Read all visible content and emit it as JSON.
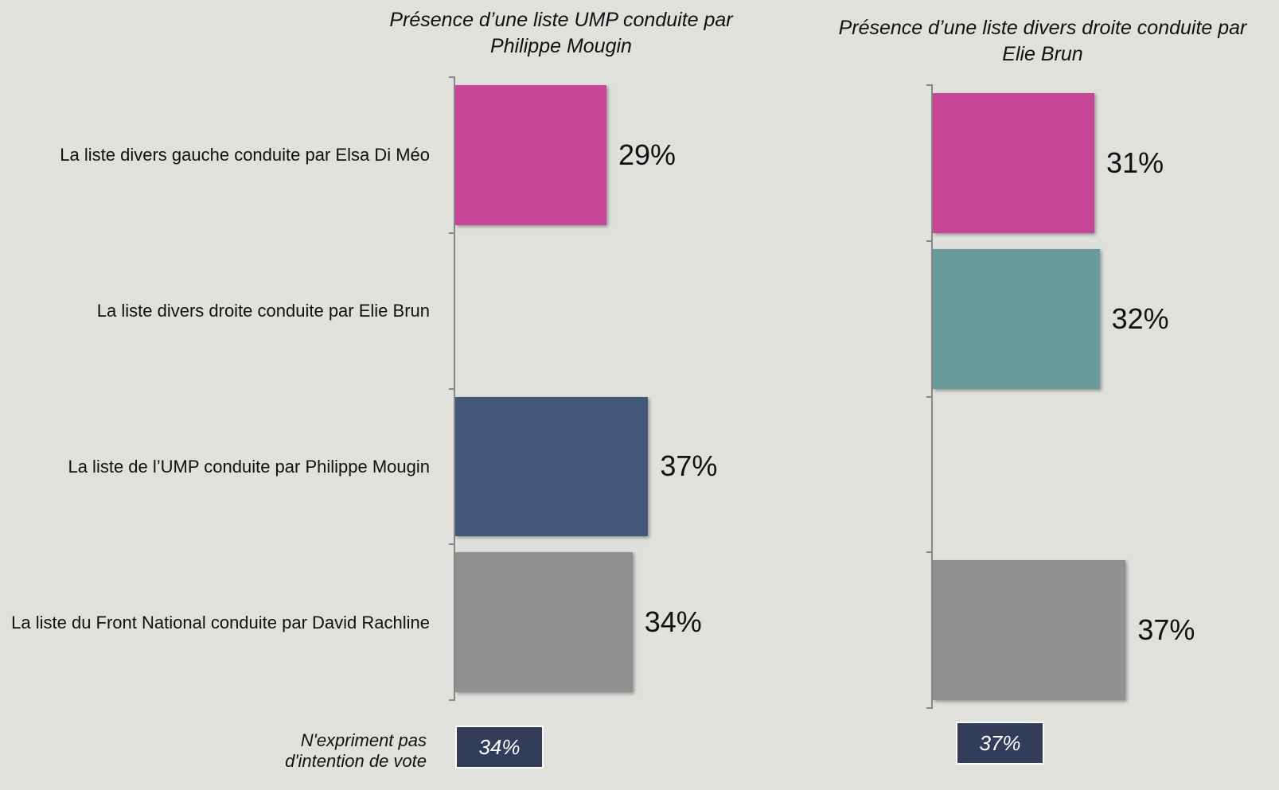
{
  "chart_data": [
    {
      "type": "hbar",
      "title": "Présence d’une liste UMP conduite par Philippe Mougin",
      "categories": [
        "La liste divers gauche conduite par Elsa Di Méo",
        "La liste divers droite conduite par Elie Brun",
        "La liste de l’UMP conduite par Philippe Mougin",
        "La liste du Front National conduite par David Rachline"
      ],
      "values": [
        29,
        null,
        37,
        34
      ],
      "value_labels": [
        "29%",
        null,
        "37%",
        "34%"
      ],
      "colors": [
        "#c84698",
        "#6a9c9c",
        "#44587a",
        "#909090"
      ],
      "xlim": [
        0,
        100
      ],
      "note": "N'expriment pas d'intention de vote",
      "no_intention": 34,
      "no_intention_label": "34%"
    },
    {
      "type": "hbar",
      "title": "Présence d’une liste divers droite conduite par Elie Brun",
      "values": [
        31,
        32,
        null,
        37
      ],
      "value_labels": [
        "31%",
        "32%",
        null,
        "37%"
      ],
      "colors": [
        "#c84698",
        "#6a9c9c",
        "#44587a",
        "#909090"
      ],
      "xlim": [
        0,
        100
      ],
      "no_intention": 37,
      "no_intention_label": "37%"
    }
  ]
}
